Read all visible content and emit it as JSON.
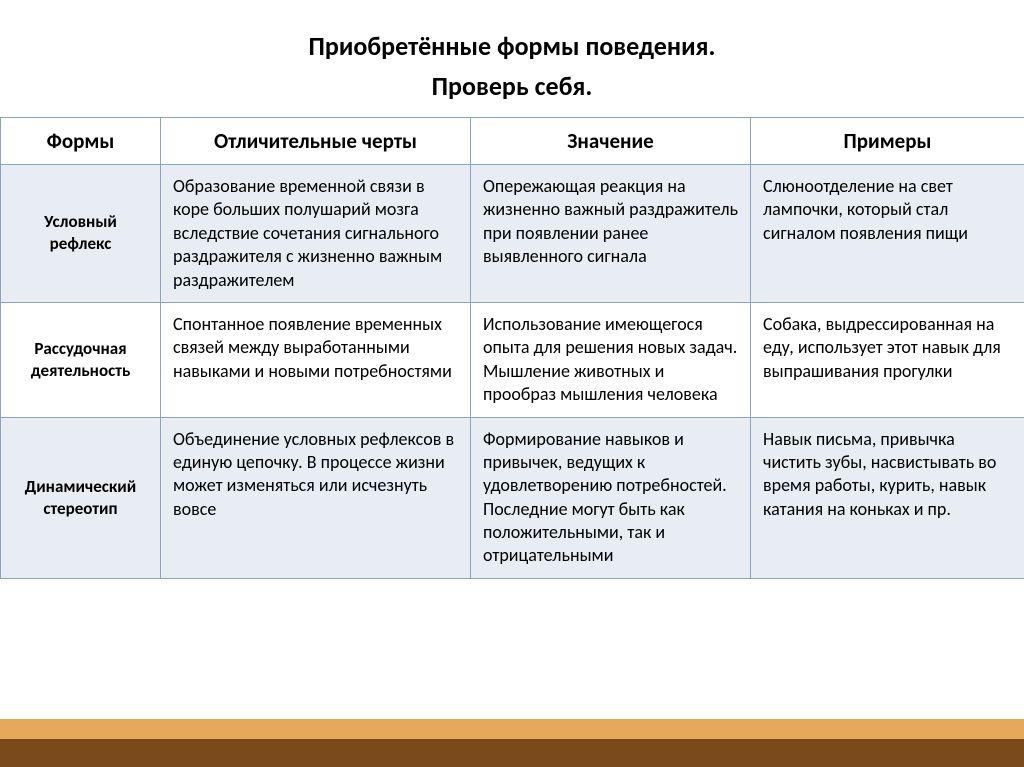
{
  "title1": "Приобретённые формы поведения.",
  "title2": "Проверь себя.",
  "columns": [
    "Формы",
    "Отличительные черты",
    "Значение",
    "Примеры"
  ],
  "row_bgs": [
    "#e8ecf3",
    "#ffffff",
    "#e8ecf3"
  ],
  "header_bg": "#ffffff",
  "border_color": "#8aa3c0",
  "rows": [
    {
      "label": "Условный рефлекс",
      "traits": "Образование временной связи в коре больших полушарий мозга вследствие сочетания сигнального раздражителя с жизненно важным раздражителем",
      "meaning": "Опережающая реакция на жизненно важный раздражитель при появлении ранее выявленного сигнала",
      "examples": "Слюноотделение на свет лампочки, который стал сигналом появления пищи"
    },
    {
      "label": "Рассудочная деятельность",
      "traits": "Спонтанное появление временных связей между выработанными навыками и новыми потребностями",
      "meaning": "Использование имеющегося опыта для решения новых задач. Мышление животных и прообраз мышления человека",
      "examples": "Собака, выдрессированная на еду, использует этот навык для выпрашивания прогулки"
    },
    {
      "label": "Динамический стереотип",
      "traits": "Объединение условных рефлексов в единую цепочку. В процессе жизни может изменяться или исчезнуть вовсе",
      "meaning": "Формирование навыков и привычек, ведущих к удовлетворению потребностей. Последние могут быть как положительными, так и отрицательными",
      "examples": "Навык письма, привычка чистить зубы, насвистывать во время работы, курить, навык катания на коньках и пр."
    }
  ],
  "footer_colors": {
    "top": "#e6a85a",
    "bottom": "#7a4a1a"
  }
}
